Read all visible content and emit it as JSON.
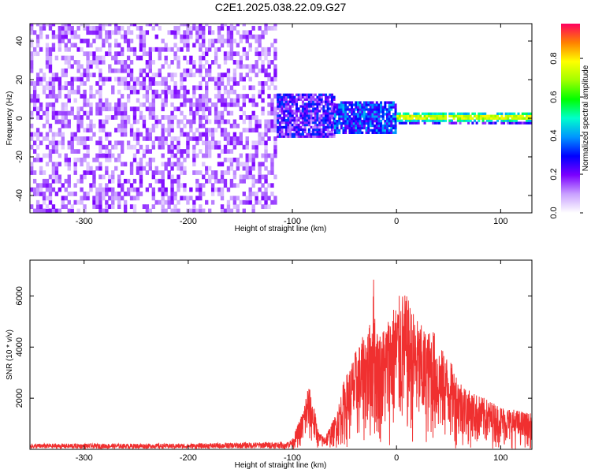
{
  "title": "C2E1.2025.038.22.09.G27",
  "chart_data": [
    {
      "type": "heatmap",
      "title": "C2E1.2025.038.22.09.G27",
      "xlabel": "Height of straight line (km)",
      "ylabel": "Frequency (Hz)",
      "xlim": [
        -352,
        130
      ],
      "ylim": [
        -49,
        49
      ],
      "x_ticks": [
        -300,
        -200,
        -100,
        0,
        100
      ],
      "y_ticks": [
        -40,
        -20,
        0,
        20,
        40
      ],
      "colorbar": {
        "label": "Normalized spectral amplitude",
        "range": [
          0,
          0.98
        ],
        "ticks": [
          0.0,
          0.2,
          0.4,
          0.6,
          0.8
        ],
        "tick_labels": [
          "0.0",
          "0.2",
          "0.4",
          "0.6",
          "0.8"
        ]
      },
      "regions": [
        {
          "x": [
            -352,
            -115
          ],
          "y": [
            -49,
            49
          ],
          "amplitude": [
            0.05,
            0.2
          ],
          "description": "noise"
        },
        {
          "x": [
            -115,
            -60
          ],
          "y": [
            -10,
            12
          ],
          "amplitude": [
            0.1,
            0.35
          ]
        },
        {
          "x": [
            -60,
            0
          ],
          "y": [
            -8,
            8
          ],
          "amplitude": [
            0.2,
            0.45
          ]
        },
        {
          "x": [
            0,
            130
          ],
          "y": [
            -3,
            3
          ],
          "amplitude": [
            0.3,
            0.95
          ],
          "peak_frequency": 0
        }
      ]
    },
    {
      "type": "line",
      "xlabel": "Height of straight line (km)",
      "ylabel": "SNR (10 * v/v)",
      "xlim": [
        -352,
        130
      ],
      "ylim": [
        0,
        7400
      ],
      "x_ticks": [
        -300,
        -200,
        -100,
        0,
        100
      ],
      "y_ticks": [
        2000,
        4000,
        6000
      ],
      "color": "#f03030",
      "envelope": {
        "x": [
          -352,
          -200,
          -110,
          -100,
          -90,
          -85,
          -80,
          -75,
          -70,
          -65,
          -60,
          -55,
          -50,
          -45,
          -40,
          -35,
          -30,
          -25,
          -22,
          -20,
          -15,
          -10,
          -5,
          0,
          5,
          10,
          15,
          20,
          25,
          30,
          35,
          40,
          50,
          60,
          70,
          80,
          90,
          100,
          110,
          120,
          130
        ],
        "y": [
          150,
          150,
          200,
          400,
          1500,
          2600,
          1900,
          700,
          500,
          800,
          1200,
          1900,
          2800,
          3200,
          3800,
          4200,
          4600,
          5000,
          6800,
          4800,
          4600,
          5000,
          5500,
          5800,
          6200,
          6000,
          5500,
          5100,
          4800,
          4600,
          4800,
          4100,
          3600,
          2800,
          2300,
          2100,
          1900,
          1700,
          1600,
          1500,
          1400
        ]
      }
    }
  ]
}
